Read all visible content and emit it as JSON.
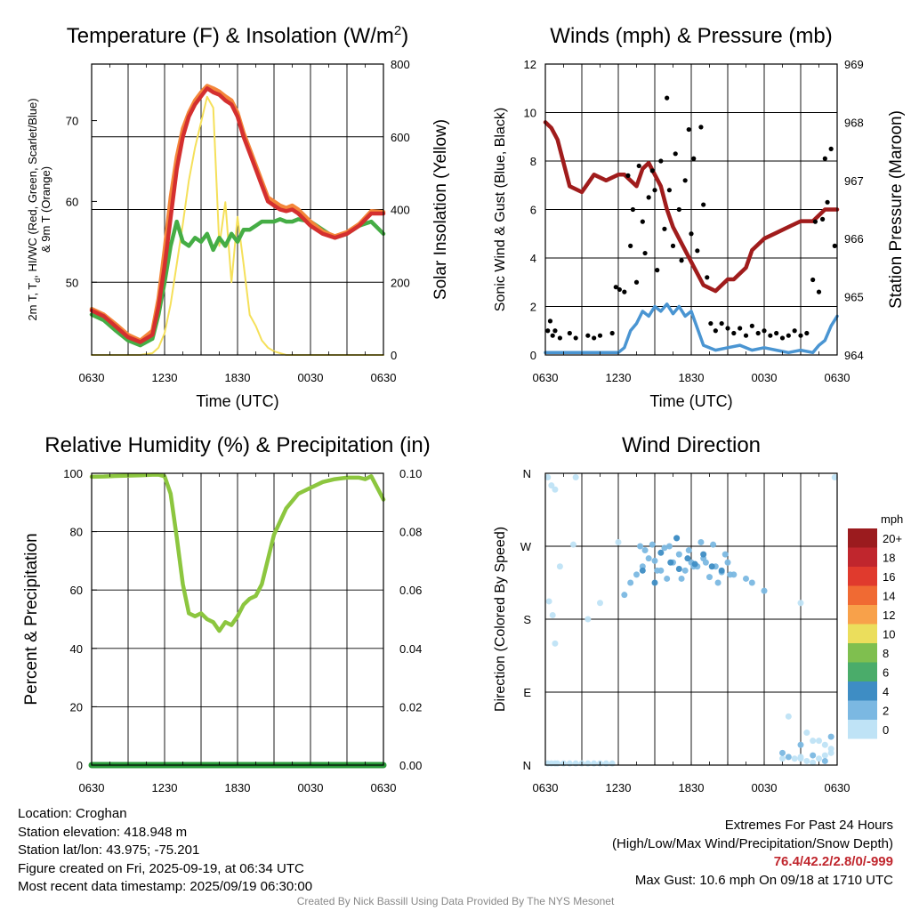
{
  "colors": {
    "temp_red": "#d42f2f",
    "temp_orange": "#f4863a",
    "temp_green": "#45ad45",
    "insolation_yellow": "#f5e05a",
    "wind_blue": "#4a95d2",
    "gust_black": "#000000",
    "pressure_maroon": "#a01c1c",
    "rh_green": "#8cc63f",
    "precip_green": "#2a9a3a"
  },
  "speed_scale": {
    "unit": "mph",
    "labels": [
      "20+",
      "18",
      "16",
      "14",
      "12",
      "10",
      "8",
      "6",
      "4",
      "2",
      "0"
    ],
    "colors": [
      "#9b1b1e",
      "#c0262d",
      "#e03a2d",
      "#f06a33",
      "#f8a14a",
      "#ebde5c",
      "#7fbf4f",
      "#4aac6a",
      "#3e8dc4",
      "#7bb8e2",
      "#bfe3f6"
    ]
  },
  "chart_data": [
    {
      "type": "line",
      "title": "Temperature (F) & Insolation (W/m",
      "title_sup": "2",
      "title_close": ")",
      "xlabel": "Time (UTC)",
      "ylabel_lines": [
        "2m T, T",
        "d",
        ", HI/WC (Red, Green, Scarlet/Blue)",
        "& 9m T (Orange)"
      ],
      "y2label": "Solar Insolation (Yellow)",
      "x_ticks": [
        "0630",
        "1230",
        "1830",
        "0030",
        "0630"
      ],
      "x_range_hours": [
        0,
        24
      ],
      "ylim": [
        41,
        77
      ],
      "y_ticks": [
        50,
        60,
        70
      ],
      "y2lim": [
        0,
        800
      ],
      "y2_ticks": [
        0,
        200,
        400,
        600,
        800
      ],
      "hours": [
        0,
        1,
        2,
        3,
        4,
        5,
        5.5,
        6,
        6.5,
        7,
        7.5,
        8,
        8.5,
        9,
        9.5,
        10,
        10.5,
        11,
        11.5,
        12,
        12.5,
        13,
        13.5,
        14,
        14.5,
        15,
        15.5,
        16,
        16.5,
        17,
        18,
        19,
        20,
        21,
        22,
        23,
        24
      ],
      "series": [
        {
          "name": "2m T",
          "values": [
            46.5,
            45.8,
            44.5,
            43.2,
            42.6,
            43.5,
            47,
            52,
            58,
            64,
            68,
            70.5,
            72,
            73,
            74,
            73.5,
            73.2,
            72.5,
            72,
            70.5,
            68,
            66,
            64,
            62,
            60,
            59.5,
            59,
            58.8,
            59,
            58.5,
            57,
            56,
            55.5,
            56,
            57,
            58.5,
            58.5
          ]
        },
        {
          "name": "9m T",
          "values": [
            46.7,
            46,
            44.8,
            43.5,
            42.8,
            44,
            48,
            54,
            60.5,
            65.5,
            69,
            71,
            72.5,
            73.5,
            74.3,
            74,
            73.6,
            73,
            72.5,
            71,
            68.5,
            66.5,
            64.5,
            62.5,
            60.5,
            60,
            59.5,
            59.2,
            59.5,
            59,
            57.5,
            56.3,
            55.7,
            56.2,
            57.2,
            58.8,
            58.7
          ]
        },
        {
          "name": "Td",
          "values": [
            46,
            45.3,
            44,
            42.8,
            42.2,
            43,
            46,
            50,
            54.5,
            57.5,
            55,
            54.5,
            55.5,
            55,
            56,
            54,
            55.5,
            54.5,
            56,
            55,
            56.5,
            56.5,
            57,
            57.5,
            57.5,
            57.5,
            57.8,
            57.5,
            57.5,
            57.8,
            57.5,
            56.5,
            55.5,
            56,
            57,
            57.5,
            56
          ]
        },
        {
          "name": "Insolation",
          "values": [
            0,
            0,
            0,
            0,
            0,
            5,
            20,
            60,
            140,
            250,
            360,
            480,
            570,
            640,
            710,
            680,
            300,
            420,
            200,
            380,
            250,
            110,
            80,
            40,
            20,
            10,
            5,
            0,
            0,
            0,
            0,
            0,
            0,
            0,
            0,
            0,
            0
          ]
        }
      ]
    },
    {
      "type": "line",
      "title": "Winds (mph) & Pressure (mb)",
      "xlabel": "Time (UTC)",
      "ylabel": "Sonic Wind & Gust (Blue, Black)",
      "y2label": "Station Pressure (Maroon)",
      "x_ticks": [
        "0630",
        "1230",
        "1830",
        "0030",
        "0630"
      ],
      "x_range_hours": [
        0,
        24
      ],
      "ylim": [
        0,
        12
      ],
      "y_ticks": [
        0,
        2,
        4,
        6,
        8,
        10,
        12
      ],
      "y2lim": [
        964,
        969
      ],
      "y2_ticks": [
        964,
        965,
        966,
        967,
        968,
        969
      ],
      "pressure": {
        "name": "Station Pressure",
        "hours": [
          0,
          0.5,
          1,
          2,
          3,
          4,
          5,
          6,
          6.5,
          7,
          7.5,
          8,
          8.5,
          9,
          9.5,
          10,
          10.5,
          11,
          12,
          13,
          14,
          14.5,
          15,
          15.5,
          16,
          16.5,
          17,
          18,
          19,
          20,
          21,
          22,
          23,
          24
        ],
        "values": [
          968.0,
          967.9,
          967.7,
          966.9,
          966.8,
          967.1,
          967.0,
          967.1,
          967.1,
          967.0,
          966.9,
          967.2,
          967.3,
          967.1,
          966.9,
          966.5,
          966.2,
          966.0,
          965.6,
          965.2,
          965.1,
          965.2,
          965.3,
          965.3,
          965.4,
          965.5,
          965.8,
          966.0,
          966.1,
          966.2,
          966.3,
          966.3,
          966.5,
          966.5
        ]
      },
      "wind": {
        "name": "Sonic Wind",
        "hours": [
          0,
          1,
          2,
          3,
          4,
          5,
          5.5,
          6,
          6.5,
          7,
          7.5,
          8,
          8.5,
          9,
          9.5,
          10,
          10.5,
          11,
          11.5,
          12,
          13,
          14,
          15,
          16,
          17,
          18,
          19,
          20,
          21,
          22,
          22.5,
          23,
          23.5,
          24
        ],
        "values": [
          0.1,
          0.1,
          0.1,
          0.1,
          0.1,
          0.1,
          0.1,
          0.1,
          0.3,
          1.0,
          1.3,
          1.8,
          1.6,
          2.0,
          1.8,
          2.1,
          1.7,
          2.0,
          1.6,
          1.8,
          0.4,
          0.2,
          0.3,
          0.4,
          0.2,
          0.3,
          0.2,
          0.1,
          0.2,
          0.1,
          0.4,
          0.6,
          1.2,
          1.6
        ]
      },
      "gusts": {
        "name": "Gust",
        "hours": [
          0.2,
          0.4,
          0.6,
          0.8,
          1.2,
          2.0,
          2.5,
          3.5,
          4.0,
          4.5,
          5.5,
          5.8,
          6.1,
          6.5,
          6.8,
          7.0,
          7.2,
          7.5,
          7.7,
          8.0,
          8.2,
          8.5,
          8.8,
          9.0,
          9.2,
          9.5,
          9.8,
          10.0,
          10.2,
          10.5,
          10.7,
          11.0,
          11.2,
          11.5,
          11.8,
          12.0,
          12.2,
          12.5,
          12.8,
          13.0,
          13.3,
          13.6,
          14.0,
          14.5,
          15.0,
          15.5,
          16.0,
          16.5,
          17.0,
          17.5,
          18.0,
          18.5,
          19.0,
          19.5,
          20.0,
          20.5,
          21.0,
          21.5,
          22.0,
          22.2,
          22.5,
          22.8,
          23.0,
          23.2,
          23.5,
          23.8
        ],
        "values": [
          1.0,
          1.4,
          0.8,
          1.0,
          0.7,
          0.9,
          0.7,
          0.8,
          0.7,
          0.8,
          0.9,
          2.8,
          2.7,
          2.6,
          7.4,
          4.5,
          6.0,
          3.0,
          7.8,
          5.5,
          4.2,
          6.5,
          7.6,
          6.8,
          3.5,
          8.0,
          5.2,
          10.6,
          6.8,
          4.5,
          8.3,
          6.0,
          3.9,
          7.2,
          9.3,
          5.0,
          8.1,
          4.3,
          9.4,
          6.2,
          3.2,
          1.3,
          1.0,
          1.3,
          1.1,
          0.9,
          1.1,
          0.8,
          1.2,
          0.9,
          1.0,
          0.8,
          0.9,
          0.7,
          0.8,
          1.0,
          0.8,
          0.9,
          3.1,
          5.5,
          2.6,
          5.6,
          8.1,
          6.3,
          8.5,
          4.5
        ]
      }
    },
    {
      "type": "line",
      "title": "Relative Humidity (%) & Precipitation (in)",
      "ylabel": "Percent & Precipitation",
      "x_ticks": [
        "0630",
        "1230",
        "1830",
        "0030",
        "0630"
      ],
      "x_range_hours": [
        0,
        24
      ],
      "ylim": [
        0,
        100
      ],
      "y_ticks": [
        0,
        20,
        40,
        60,
        80,
        100
      ],
      "y2lim": [
        0,
        0.1
      ],
      "y2_ticks": [
        "0.00",
        "0.02",
        "0.04",
        "0.06",
        "0.08",
        "0.10"
      ],
      "hours": [
        0,
        1,
        2,
        3,
        4,
        5,
        5.5,
        6,
        6.5,
        7,
        7.5,
        8,
        8.5,
        9,
        9.5,
        10,
        10.5,
        11,
        11.5,
        12,
        12.5,
        13,
        13.5,
        14,
        15,
        16,
        17,
        18,
        19,
        20,
        21,
        22,
        22.5,
        23,
        23.5,
        24
      ],
      "series": [
        {
          "name": "Relative Humidity",
          "values": [
            98.8,
            98.9,
            99.1,
            99.2,
            99.3,
            99.5,
            99.5,
            99.0,
            93,
            78,
            62,
            52,
            51,
            52,
            50,
            49,
            46,
            49,
            48,
            51,
            55,
            57,
            58,
            62,
            79,
            88,
            93,
            95,
            97,
            98,
            98.5,
            98.5,
            98.0,
            99.0,
            95,
            91
          ]
        },
        {
          "name": "Precipitation",
          "values": [
            0,
            0,
            0,
            0,
            0,
            0,
            0,
            0,
            0,
            0,
            0,
            0,
            0,
            0,
            0,
            0,
            0,
            0,
            0,
            0,
            0,
            0,
            0,
            0,
            0,
            0,
            0,
            0,
            0,
            0,
            0,
            0,
            0,
            0,
            0,
            0
          ]
        }
      ]
    },
    {
      "type": "scatter",
      "title": "Wind Direction",
      "ylabel": "Direction (Colored By Speed)",
      "x_ticks": [
        "0630",
        "1230",
        "1830",
        "0030",
        "0630"
      ],
      "x_range_hours": [
        0,
        24
      ],
      "ylim": [
        0,
        360
      ],
      "y_ticks": [
        "N",
        "E",
        "S",
        "W",
        "N"
      ],
      "series": [
        {
          "name": "speed 0 mph",
          "color_index": 10,
          "hours": [
            0.2,
            0.5,
            0.8,
            1.0,
            1.5,
            2.0,
            2.5,
            3.0,
            3.5,
            4.0,
            4.5,
            5.0,
            5.5,
            0.3,
            0.6,
            0.8,
            1.2,
            2.3,
            3.5,
            6.0,
            20.5,
            21.0,
            21.5,
            22.0,
            22.5,
            23.0,
            23.5,
            0.2,
            0.5,
            0.8,
            2.5,
            4.5,
            21.0,
            22.0,
            23.5,
            20.0,
            21.5,
            22.5,
            23.0,
            19.5,
            21.0,
            23.8
          ],
          "values": [
            2,
            2,
            2,
            2,
            2,
            2,
            2,
            2,
            2,
            2,
            2,
            2,
            2,
            202,
            185,
            150,
            245,
            272,
            180,
            275,
            8,
            10,
            5,
            3,
            8,
            12,
            20,
            355,
            345,
            340,
            355,
            200,
            200,
            30,
            15,
            60,
            40,
            30,
            25,
            8,
            8,
            355
          ]
        },
        {
          "name": "speed 2 mph",
          "color_index": 9,
          "hours": [
            7.5,
            8.0,
            8.5,
            9.0,
            9.5,
            10.0,
            10.5,
            11.0,
            11.5,
            12.0,
            12.5,
            13.0,
            13.5,
            14.0,
            14.5,
            15.0,
            15.5,
            7.8,
            8.8,
            9.8,
            10.8,
            11.8,
            12.8,
            13.8,
            14.8,
            6.5,
            7.0,
            8.2,
            9.2,
            10.2,
            11.2,
            12.2,
            13.2,
            14.2,
            15.2,
            16.5,
            17.0,
            18.0,
            19.5,
            20.0,
            21.0,
            22.0,
            23.0,
            23.5
          ],
          "values": [
            235,
            245,
            255,
            252,
            240,
            230,
            250,
            260,
            240,
            250,
            245,
            255,
            232,
            245,
            238,
            250,
            235,
            270,
            272,
            268,
            280,
            265,
            275,
            272,
            260,
            210,
            225,
            265,
            240,
            270,
            230,
            245,
            250,
            225,
            235,
            230,
            225,
            215,
            15,
            10,
            25,
            12,
            5,
            35
          ]
        },
        {
          "name": "speed 4 mph",
          "color_index": 8,
          "hours": [
            8.0,
            9.5,
            10.3,
            11.0,
            11.7,
            12.3,
            13.0,
            13.7,
            14.5,
            10.8,
            9.0
          ],
          "values": [
            240,
            262,
            250,
            242,
            255,
            248,
            260,
            245,
            240,
            280,
            225
          ]
        }
      ]
    }
  ],
  "footer": {
    "location": "Location: Croghan",
    "elevation": "Station elevation: 418.948 m",
    "latlon": "Station lat/lon: 43.975; -75.201",
    "created": "Figure created on Fri, 2025-09-19, at 06:34 UTC",
    "recent": "Most recent data timestamp: 2025/09/19 06:30:00",
    "extremes_title": "Extremes For Past 24 Hours",
    "extremes_sub": "(High/Low/Max Wind/Precipitation/Snow Depth)",
    "extremes_values": "76.4/42.2/2.8/0/-999",
    "max_gust": "Max Gust: 10.6 mph On 09/18 at 1710 UTC",
    "credit": "Created By Nick Bassill Using Data Provided By The NYS Mesonet"
  }
}
